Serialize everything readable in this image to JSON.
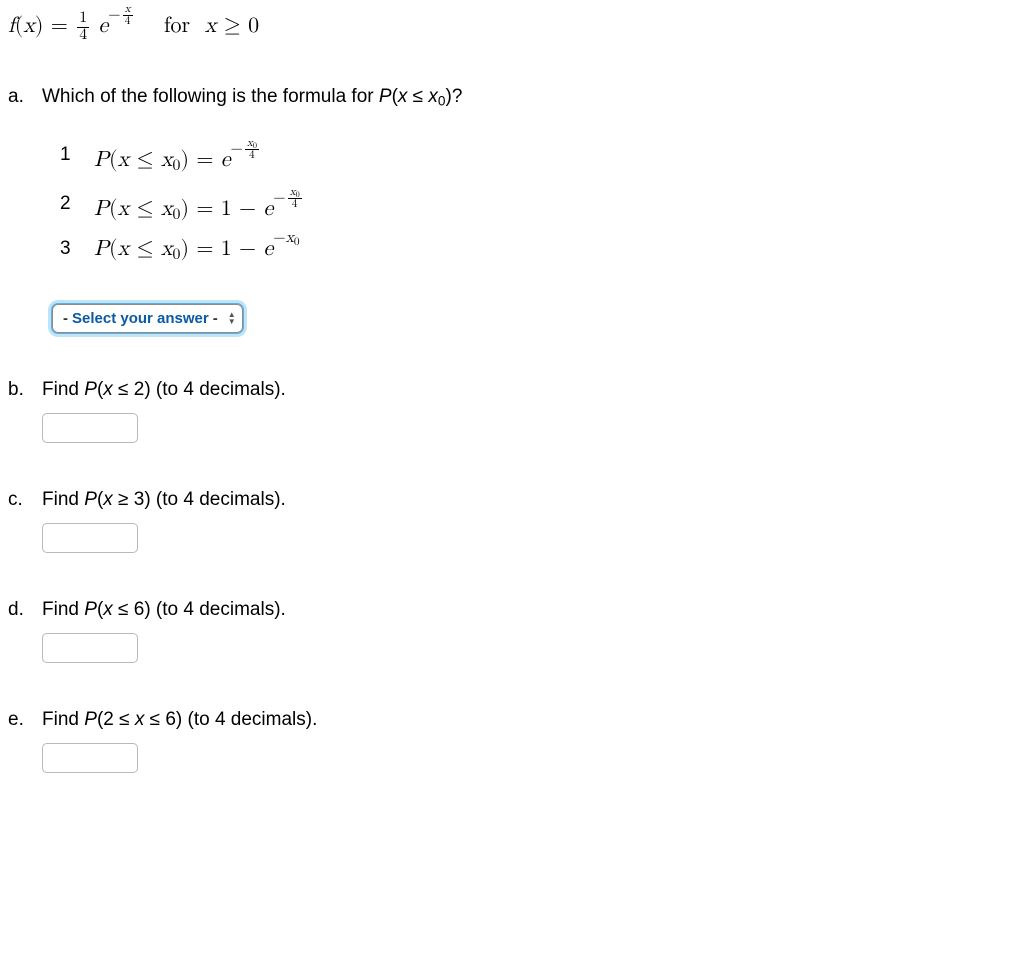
{
  "formula": {
    "fx_html": "<span class='math'>f<span class='upright'>(</span>x<span class='upright'>)</span> <span class='upright'>=</span> </span><span class='frac'><span class='top'>1</span><span class='bot'>4</span></span> <span class='math'>e</span><sup><span class='upright'>−</span><span class='frac'><span class='top'><span class='math'>x</span></span><span class='bot'>4</span></span></sup>",
    "for_html": "&nbsp;&nbsp;&nbsp;for&nbsp;&nbsp;<span class='math'>x</span> ≥ 0"
  },
  "questions": {
    "a": {
      "label": "a.",
      "text_html": "Which of the following is the formula for <span class='italic'>P</span>(<span class='italic'>x</span> ≤ <span class='italic'>x</span><sub>0</sub>)?",
      "options": [
        {
          "n": "1",
          "math_html": "<span class='math'>P<span class='upright'>(</span>x <span class='upright'>≤</span> x<sub>0</sub><span class='upright'>)</span> <span class='upright'>=</span> e</span><sup><span class='upright'>−</span><span class='frac'><span class='top'><span class='math'>x</span><sub>0</sub></span><span class='bot'>4</span></span></sup>"
        },
        {
          "n": "2",
          "math_html": "<span class='math'>P<span class='upright'>(</span>x <span class='upright'>≤</span> x<sub>0</sub><span class='upright'>)</span> <span class='upright'>= 1 −</span> e</span><sup><span class='upright'>−</span><span class='frac'><span class='top'><span class='math'>x</span><sub>0</sub></span><span class='bot'>4</span></span></sup>"
        },
        {
          "n": "3",
          "math_html": "<span class='math'>P<span class='upright'>(</span>x <span class='upright'>≤</span> x<sub>0</sub><span class='upright'>)</span> <span class='upright'>= 1 −</span> e<sup><span class='upright'>−</span>x<sub>0</sub></sup></span>"
        }
      ],
      "select_placeholder": "Select your answer"
    },
    "b": {
      "label": "b.",
      "text_html": "Find <span class='italic'>P</span>(<span class='italic'>x</span> ≤ 2) (to 4 decimals)."
    },
    "c": {
      "label": "c.",
      "text_html": "Find <span class='italic'>P</span>(<span class='italic'>x</span> ≥ 3) (to 4 decimals)."
    },
    "d": {
      "label": "d.",
      "text_html": "Find <span class='italic'>P</span>(<span class='italic'>x</span> ≤ 6) (to 4 decimals)."
    },
    "e": {
      "label": "e.",
      "text_html": "Find <span class='italic'>P</span>(2 ≤ <span class='italic'>x</span> ≤ 6) (to 4 decimals)."
    }
  },
  "colors": {
    "select_text": "#0a5aa6",
    "select_glow": "#bfe3f7",
    "select_outline": "#5ab0e7",
    "input_border": "#b9b9b9"
  }
}
